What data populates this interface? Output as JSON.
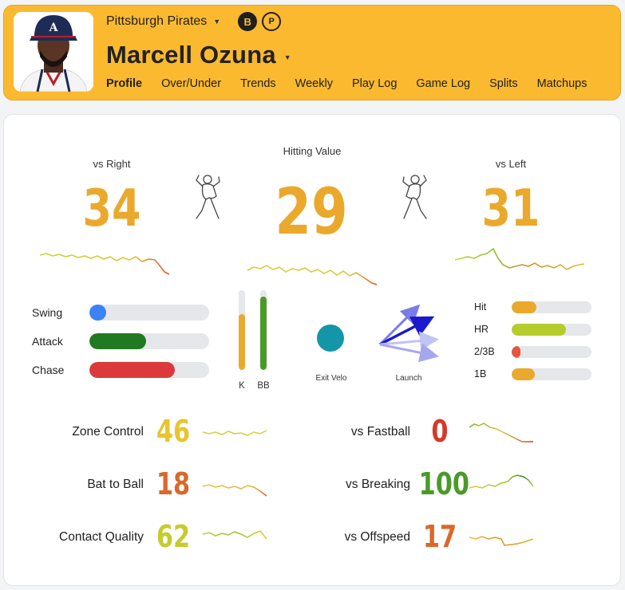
{
  "header": {
    "team": "Pittsburgh Pirates",
    "badges": [
      "B",
      "P"
    ],
    "player_name": "Marcell Ozuna",
    "tabs": [
      "Profile",
      "Over/Under",
      "Trends",
      "Weekly",
      "Play Log",
      "Game Log",
      "Splits",
      "Matchups"
    ],
    "active_tab": "Profile",
    "accent_color": "#fbb92f"
  },
  "hitting": {
    "center": {
      "label": "Hitting Value",
      "value": "29"
    },
    "right": {
      "label": "vs Right",
      "value": "34"
    },
    "left": {
      "label": "vs Left",
      "value": "31"
    }
  },
  "approach": [
    {
      "label": "Swing",
      "pct": 14,
      "color": "#3b82f6"
    },
    {
      "label": "Attack",
      "pct": 47,
      "color": "#217a21"
    },
    {
      "label": "Chase",
      "pct": 71,
      "color": "#dc3a3a"
    }
  ],
  "vertical_bars": [
    {
      "label": "K",
      "pct": 70,
      "color": "#eaa92c"
    },
    {
      "label": "BB",
      "pct": 92,
      "color": "#4a9a2a"
    }
  ],
  "exit_velo": {
    "label": "Exit Velo",
    "color": "#1396a8"
  },
  "launch": {
    "label": "Launch"
  },
  "outcomes": [
    {
      "label": "Hit",
      "pct": 31,
      "color": "#eaa92c"
    },
    {
      "label": "HR",
      "pct": 68,
      "color": "#b5cc2c"
    },
    {
      "label": "2/3B",
      "pct": 11,
      "color": "#e8553a"
    },
    {
      "label": "1B",
      "pct": 29,
      "color": "#eaa92c"
    }
  ],
  "stats_left": [
    {
      "label": "Zone Control",
      "value": "46",
      "color": "#e8c42e"
    },
    {
      "label": "Bat to Ball",
      "value": "18",
      "color": "#d9692a"
    },
    {
      "label": "Contact Quality",
      "value": "62",
      "color": "#c4cc2e"
    }
  ],
  "stats_right": [
    {
      "label": "vs Fastball",
      "value": "0",
      "color": "#d43a2a"
    },
    {
      "label": "vs Breaking",
      "value": "100",
      "color": "#4a9a2a"
    },
    {
      "label": "vs Offspeed",
      "value": "17",
      "color": "#d9692a"
    }
  ]
}
